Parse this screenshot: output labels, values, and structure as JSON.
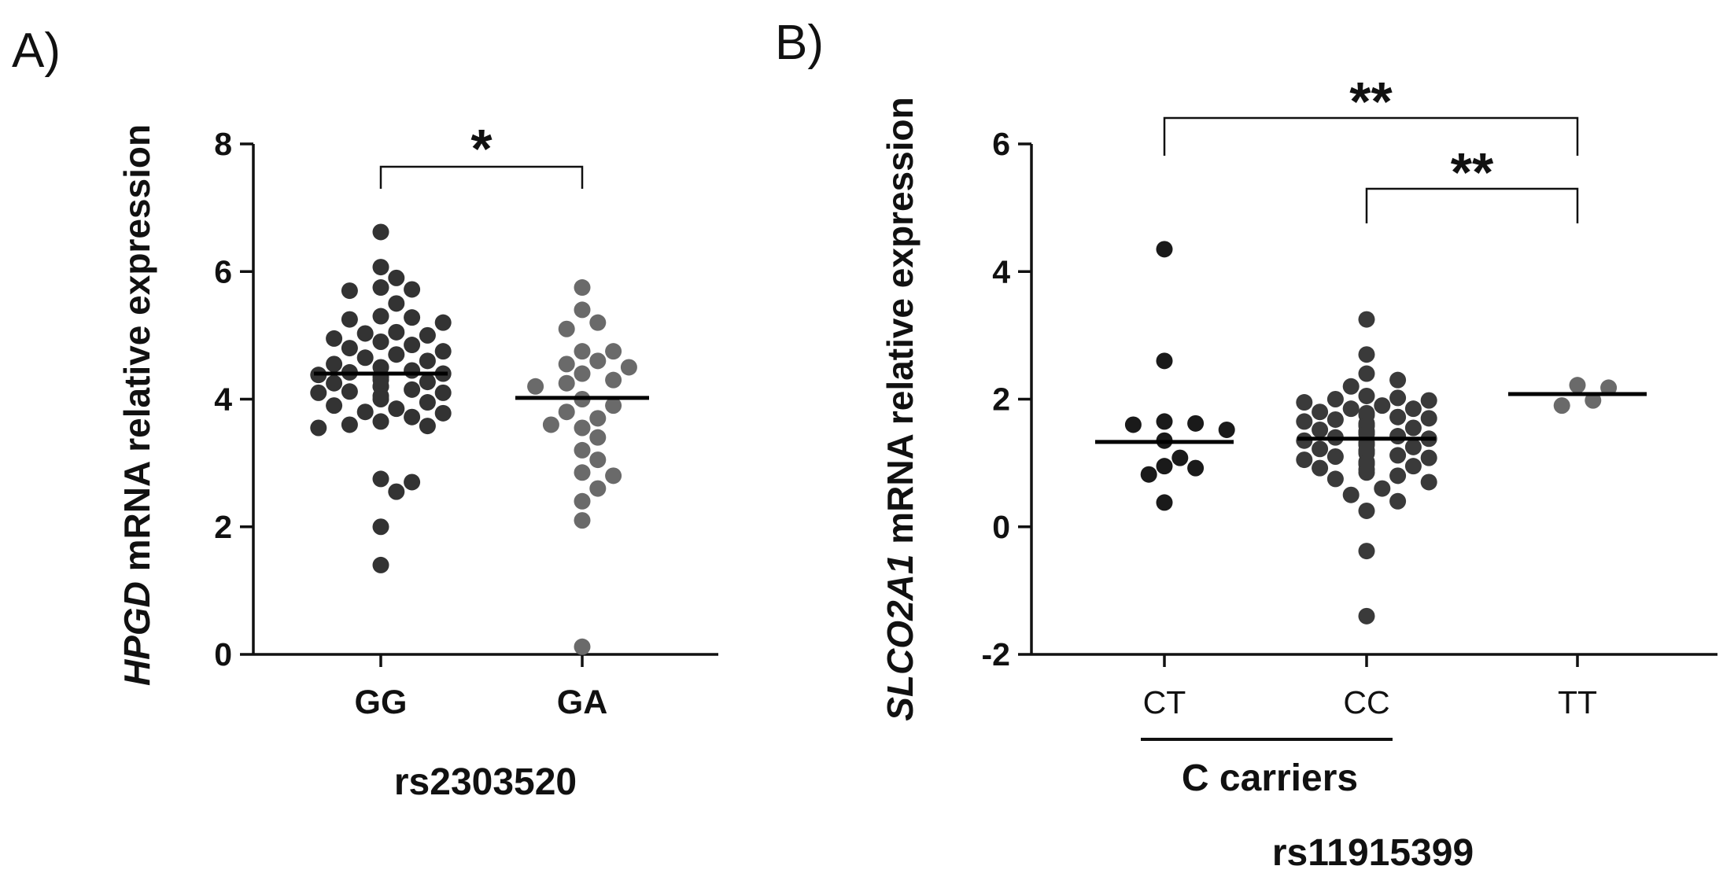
{
  "panels": {
    "a": {
      "label": "A)"
    },
    "b": {
      "label": "B)"
    }
  },
  "chart_data": [
    {
      "type": "scatter",
      "ylabel_gene": "HPGD",
      "ylabel_rest": " mRNA relative expression",
      "xlabel": "rs2303520",
      "ylim": [
        0,
        8
      ],
      "yticks": [
        0,
        2,
        4,
        6,
        8
      ],
      "categories": [
        "GG",
        "GA"
      ],
      "colors": [
        "#333333",
        "#6a6a6a"
      ],
      "groups": [
        {
          "name": "GG",
          "mean": 4.4,
          "points": [
            6.62,
            6.07,
            5.9,
            5.75,
            5.72,
            5.7,
            5.5,
            5.3,
            5.28,
            5.2,
            5.25,
            5.05,
            5.03,
            5.0,
            4.95,
            4.9,
            4.85,
            4.8,
            4.75,
            4.7,
            4.65,
            4.6,
            4.55,
            4.5,
            4.45,
            4.42,
            4.4,
            4.38,
            4.35,
            4.3,
            4.27,
            4.25,
            4.2,
            4.2,
            4.15,
            4.12,
            4.1,
            4.1,
            4.05,
            4.0,
            3.95,
            3.9,
            3.85,
            3.8,
            3.78,
            3.72,
            3.65,
            3.6,
            3.58,
            3.55,
            2.75,
            2.7,
            2.55,
            2.0,
            1.4
          ]
        },
        {
          "name": "GA",
          "mean": 4.02,
          "points": [
            5.75,
            5.4,
            5.2,
            5.1,
            4.75,
            4.75,
            4.6,
            4.55,
            4.5,
            4.4,
            4.3,
            4.25,
            4.2,
            4.0,
            3.9,
            3.8,
            3.7,
            3.6,
            3.55,
            3.4,
            3.2,
            3.05,
            2.85,
            2.8,
            2.6,
            2.4,
            2.1,
            0.12
          ]
        }
      ],
      "annotations": [
        {
          "text": "*",
          "from": "GG",
          "to": "GA"
        }
      ]
    },
    {
      "type": "scatter",
      "ylabel_gene": "SLCO2A1",
      "ylabel_rest": " mRNA relative expression",
      "xlabel": "rs11915399",
      "group_label": "C carriers",
      "ylim": [
        -2,
        6
      ],
      "yticks": [
        -2,
        0,
        2,
        4,
        6
      ],
      "categories": [
        "CT",
        "CC",
        "TT"
      ],
      "colors": [
        "#1a1a1a",
        "#3a3a3a",
        "#6a6a6a"
      ],
      "groups": [
        {
          "name": "CT",
          "mean": 1.33,
          "points": [
            4.35,
            2.6,
            1.65,
            1.62,
            1.6,
            1.52,
            1.35,
            1.08,
            0.95,
            0.92,
            0.82,
            0.38
          ]
        },
        {
          "name": "CC",
          "mean": 1.38,
          "points": [
            3.25,
            2.7,
            2.4,
            2.3,
            2.2,
            2.05,
            2.02,
            2.0,
            1.98,
            1.95,
            1.9,
            1.85,
            1.85,
            1.8,
            1.78,
            1.75,
            1.72,
            1.7,
            1.68,
            1.65,
            1.62,
            1.6,
            1.58,
            1.55,
            1.52,
            1.5,
            1.48,
            1.45,
            1.42,
            1.4,
            1.38,
            1.35,
            1.32,
            1.3,
            1.28,
            1.25,
            1.22,
            1.2,
            1.18,
            1.15,
            1.12,
            1.1,
            1.08,
            1.05,
            1.02,
            1.0,
            0.98,
            0.95,
            0.92,
            0.9,
            0.85,
            0.8,
            0.75,
            0.7,
            0.6,
            0.5,
            0.4,
            0.25,
            -0.38,
            -1.4
          ]
        },
        {
          "name": "TT",
          "mean": 2.08,
          "points": [
            2.22,
            2.18,
            1.98,
            1.9
          ]
        }
      ],
      "annotations": [
        {
          "text": "**",
          "from": "CT",
          "to": "TT"
        },
        {
          "text": "**",
          "from": "CC",
          "to": "TT"
        }
      ]
    }
  ]
}
